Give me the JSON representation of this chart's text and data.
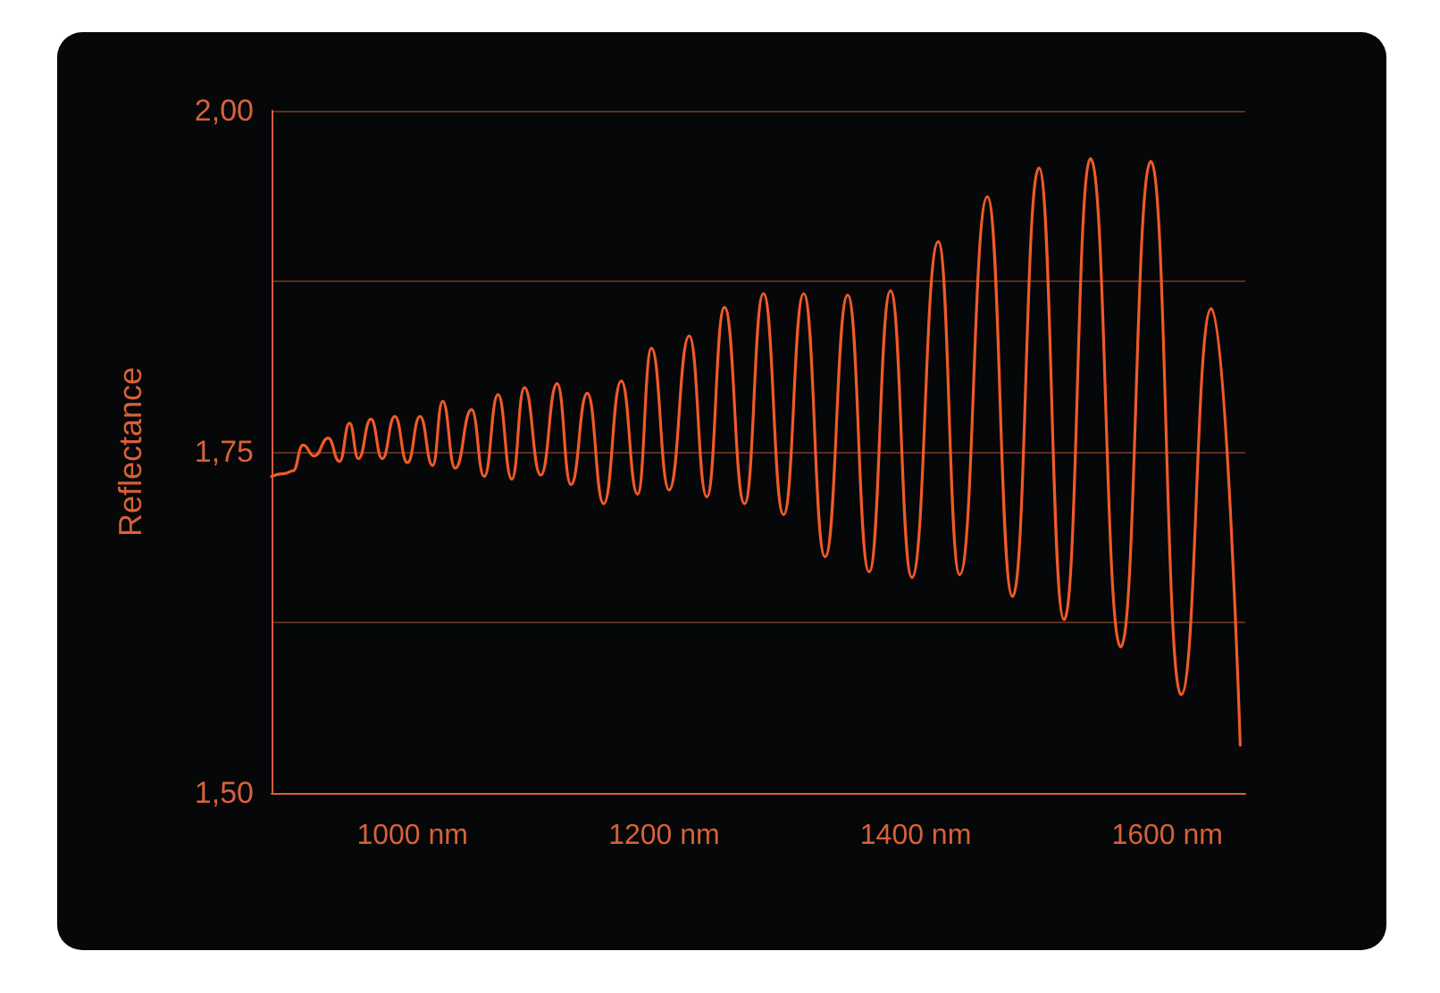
{
  "chart_data": {
    "type": "line",
    "ylabel": "Reflectance",
    "xlim": [
      888,
      1662
    ],
    "ylim": [
      1.5,
      2.0
    ],
    "xticks": [
      {
        "value": 1000,
        "label": "1000 nm"
      },
      {
        "value": 1200,
        "label": "1200 nm"
      },
      {
        "value": 1400,
        "label": "1400 nm"
      },
      {
        "value": 1600,
        "label": "1600 nm"
      }
    ],
    "yticks": [
      {
        "value": 1.5,
        "label": "1,50"
      },
      {
        "value": 1.625,
        "label": null
      },
      {
        "value": 1.75,
        "label": "1,75"
      },
      {
        "value": 1.875,
        "label": null
      },
      {
        "value": 2.0,
        "label": "2,00"
      }
    ],
    "grid": "y",
    "marker": "none",
    "line_style": "solid",
    "series": [
      {
        "color": "#f05a28",
        "x": [
          888,
          898,
          905,
          913,
          922,
          933,
          942,
          950,
          957,
          967,
          976,
          986,
          996,
          1006,
          1016,
          1024,
          1034,
          1047,
          1057,
          1068,
          1079,
          1089,
          1102,
          1115,
          1126,
          1139,
          1152,
          1166,
          1179,
          1190,
          1204,
          1220,
          1234,
          1248,
          1264,
          1279,
          1295,
          1311,
          1328,
          1346,
          1363,
          1380,
          1397,
          1418,
          1435,
          1457,
          1477,
          1498,
          1518,
          1539,
          1563,
          1587,
          1611,
          1635,
          1658
        ],
        "values": [
          1.732,
          1.734,
          1.736,
          1.755,
          1.747,
          1.76,
          1.743,
          1.771,
          1.745,
          1.774,
          1.745,
          1.776,
          1.742,
          1.776,
          1.74,
          1.787,
          1.738,
          1.781,
          1.732,
          1.792,
          1.73,
          1.797,
          1.733,
          1.8,
          1.726,
          1.793,
          1.712,
          1.802,
          1.719,
          1.826,
          1.722,
          1.835,
          1.717,
          1.856,
          1.712,
          1.866,
          1.704,
          1.866,
          1.673,
          1.865,
          1.662,
          1.868,
          1.658,
          1.904,
          1.66,
          1.937,
          1.644,
          1.958,
          1.627,
          1.965,
          1.607,
          1.963,
          1.572,
          1.855,
          1.535
        ]
      }
    ]
  }
}
